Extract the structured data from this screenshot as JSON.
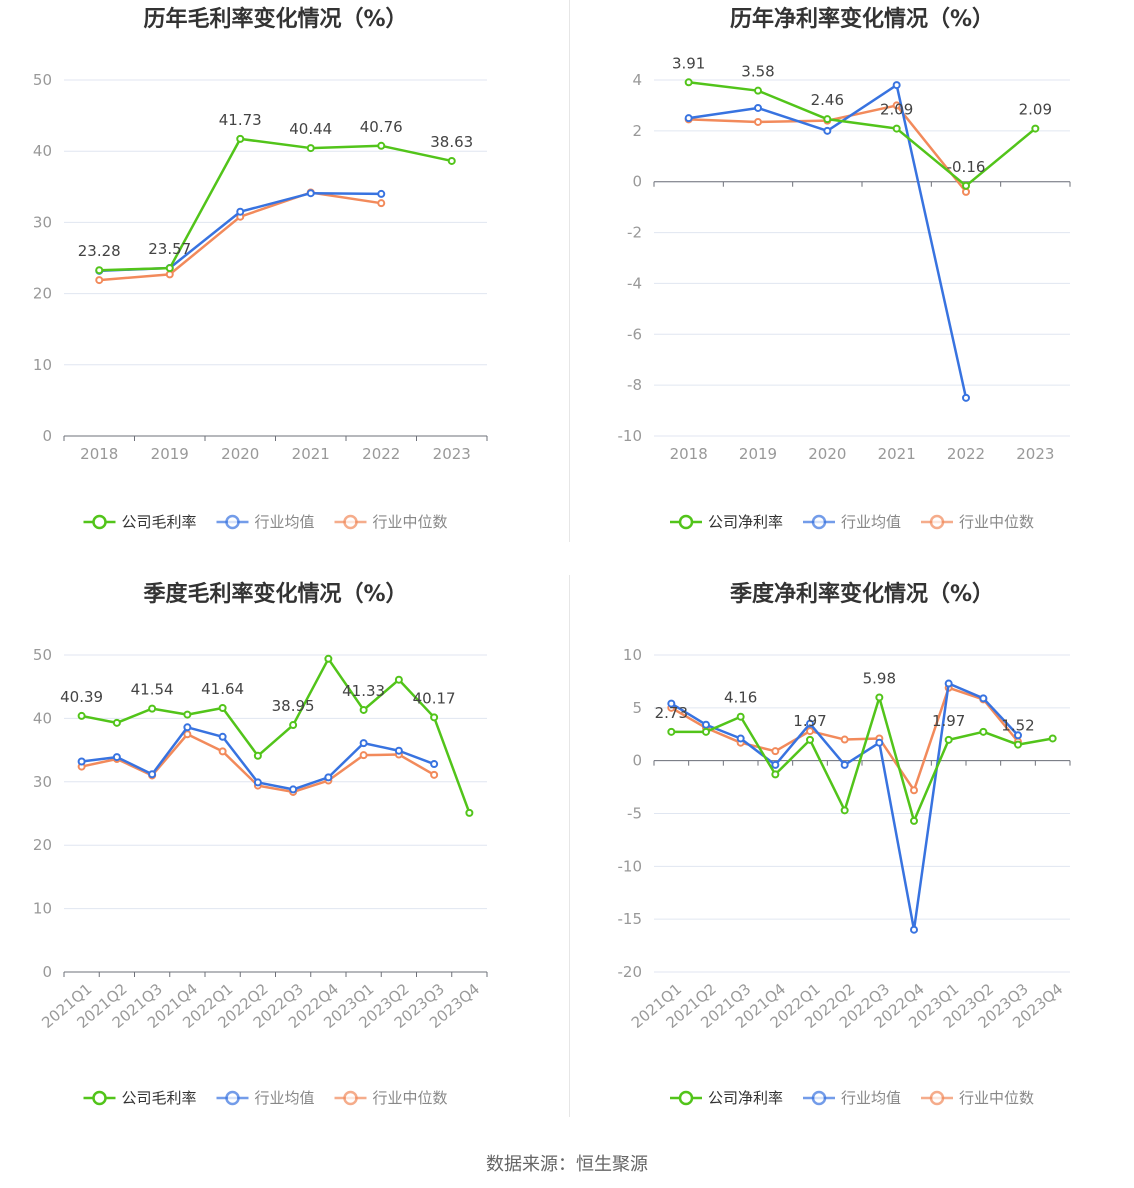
{
  "source": "数据来源：恒生聚源",
  "colors": {
    "company": "#52c41a",
    "avg": "#3873e0",
    "median": "#f28a5b",
    "axis": "#6e7079",
    "grid": "#e0e6f1",
    "label": "#999999",
    "title": "#333333"
  },
  "chart_data": [
    {
      "type": "line",
      "title": "历年毛利率变化情况（%）",
      "categories": [
        "2018",
        "2019",
        "2020",
        "2021",
        "2022",
        "2023"
      ],
      "ylim": [
        0,
        50
      ],
      "yticks": [
        0,
        10,
        20,
        30,
        40,
        50
      ],
      "yticks_labels": [
        "0",
        "10",
        "20",
        "30",
        "40",
        "50"
      ],
      "grid": true,
      "legend": "bottom",
      "series": [
        {
          "name": "公司毛利率",
          "key": "company",
          "values": [
            23.28,
            23.57,
            41.73,
            40.44,
            40.76,
            38.63
          ],
          "labels": [
            "23.28",
            "23.57",
            "41.73",
            "40.44",
            "40.76",
            "38.63"
          ]
        },
        {
          "name": "行业均值",
          "key": "avg",
          "values": [
            23.2,
            23.6,
            31.5,
            34.1,
            34.0,
            null
          ]
        },
        {
          "name": "行业中位数",
          "key": "median",
          "values": [
            21.9,
            22.7,
            30.8,
            34.2,
            32.7,
            null
          ]
        }
      ]
    },
    {
      "type": "line",
      "title": "历年净利率变化情况（%）",
      "categories": [
        "2018",
        "2019",
        "2020",
        "2021",
        "2022",
        "2023"
      ],
      "ylim": [
        -10,
        4
      ],
      "yticks": [
        4,
        2,
        0,
        -2,
        -4,
        -6,
        -8,
        -10
      ],
      "yticks_labels": [
        "4",
        "2",
        "0",
        "-2",
        "-4",
        "-6",
        "-8",
        "-10"
      ],
      "grid": true,
      "legend": "bottom",
      "series": [
        {
          "name": "公司净利率",
          "key": "company",
          "values": [
            3.91,
            3.58,
            2.46,
            2.09,
            -0.16,
            2.09
          ],
          "labels": [
            "3.91",
            "3.58",
            "2.46",
            "2.09",
            "-0.16",
            "2.09"
          ]
        },
        {
          "name": "行业均值",
          "key": "avg",
          "values": [
            2.5,
            2.9,
            2.0,
            3.8,
            -8.5,
            null
          ]
        },
        {
          "name": "行业中位数",
          "key": "median",
          "values": [
            2.45,
            2.35,
            2.4,
            3.0,
            -0.4,
            null
          ]
        }
      ]
    },
    {
      "type": "line",
      "title": "季度毛利率变化情况（%）",
      "categories": [
        "2021Q1",
        "2021Q2",
        "2021Q3",
        "2021Q4",
        "2022Q1",
        "2022Q2",
        "2022Q3",
        "2022Q4",
        "2023Q1",
        "2023Q2",
        "2023Q3",
        "2023Q4"
      ],
      "ylim": [
        0,
        50
      ],
      "yticks": [
        0,
        10,
        20,
        30,
        40,
        50
      ],
      "yticks_labels": [
        "0",
        "10",
        "20",
        "30",
        "40",
        "50"
      ],
      "grid": true,
      "legend": "bottom",
      "series": [
        {
          "name": "公司毛利率",
          "key": "company",
          "values": [
            40.39,
            39.3,
            41.54,
            40.6,
            41.64,
            34.1,
            38.95,
            49.4,
            41.33,
            46.1,
            40.17,
            25.1
          ],
          "labels": [
            "40.39",
            "",
            "41.54",
            "",
            "41.64",
            "",
            "38.95",
            "",
            "41.33",
            "",
            "40.17",
            ""
          ]
        },
        {
          "name": "行业均值",
          "key": "avg",
          "values": [
            33.2,
            33.9,
            31.2,
            38.6,
            37.1,
            29.9,
            28.8,
            30.7,
            36.1,
            34.9,
            32.8,
            null
          ]
        },
        {
          "name": "行业中位数",
          "key": "median",
          "values": [
            32.4,
            33.6,
            31.0,
            37.5,
            34.8,
            29.4,
            28.4,
            30.2,
            34.2,
            34.3,
            31.1,
            null
          ]
        }
      ]
    },
    {
      "type": "line",
      "title": "季度净利率变化情况（%）",
      "categories": [
        "2021Q1",
        "2021Q2",
        "2021Q3",
        "2021Q4",
        "2022Q1",
        "2022Q2",
        "2022Q3",
        "2022Q4",
        "2023Q1",
        "2023Q2",
        "2023Q3",
        "2023Q4"
      ],
      "ylim": [
        -20,
        10
      ],
      "yticks": [
        10,
        5,
        0,
        -5,
        -10,
        -15,
        -20
      ],
      "yticks_labels": [
        "10",
        "5",
        "0",
        "-5",
        "-10",
        "-15",
        "-20"
      ],
      "grid": true,
      "legend": "bottom",
      "series": [
        {
          "name": "公司净利率",
          "key": "company",
          "values": [
            2.73,
            2.73,
            4.16,
            -1.3,
            1.97,
            -4.7,
            5.98,
            -5.7,
            1.97,
            2.73,
            1.52,
            2.1
          ],
          "labels": [
            "2.73",
            "",
            "4.16",
            "",
            "1.97",
            "",
            "5.98",
            "",
            "1.97",
            "",
            "1.52",
            ""
          ]
        },
        {
          "name": "行业均值",
          "key": "avg",
          "values": [
            5.4,
            3.4,
            2.1,
            -0.4,
            3.5,
            -0.4,
            1.7,
            -16.0,
            7.3,
            5.9,
            2.4,
            null
          ]
        },
        {
          "name": "行业中位数",
          "key": "median",
          "values": [
            5.0,
            3.1,
            1.7,
            0.9,
            2.8,
            2.0,
            2.1,
            -2.8,
            6.9,
            5.8,
            1.8,
            null
          ]
        }
      ]
    }
  ]
}
